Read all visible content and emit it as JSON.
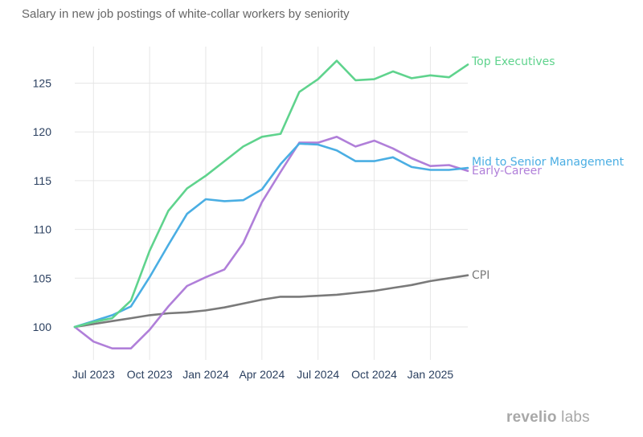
{
  "chart_data": {
    "type": "line",
    "title": "Salary in new job postings of white-collar workers by seniority",
    "xlabel": "",
    "ylabel": "",
    "x": [
      "2023-06",
      "2023-07",
      "2023-08",
      "2023-09",
      "2023-10",
      "2023-11",
      "2023-12",
      "2024-01",
      "2024-02",
      "2024-03",
      "2024-04",
      "2024-05",
      "2024-06",
      "2024-07",
      "2024-08",
      "2024-09",
      "2024-10",
      "2024-11",
      "2024-12",
      "2025-01",
      "2025-02",
      "2025-03"
    ],
    "xticks": [
      "Jul 2023",
      "Oct 2023",
      "Jan 2024",
      "Apr 2024",
      "Jul 2024",
      "Oct 2024",
      "Jan 2025"
    ],
    "xtick_dates": [
      "2023-07",
      "2023-10",
      "2024-01",
      "2024-04",
      "2024-07",
      "2024-10",
      "2025-01"
    ],
    "yticks": [
      100,
      105,
      110,
      115,
      120,
      125
    ],
    "ylim": [
      97.5,
      128.5
    ],
    "grid": true,
    "series": [
      {
        "name": "Top Executives",
        "color": "#5fd38d",
        "values": [
          100,
          100.5,
          100.9,
          102.7,
          107.8,
          111.9,
          114.2,
          115.5,
          117.0,
          118.5,
          119.5,
          119.8,
          124.1,
          125.4,
          127.3,
          125.3,
          125.4,
          126.2,
          125.5,
          125.8,
          125.6,
          126.9
        ]
      },
      {
        "name": "Mid to Senior Management",
        "color": "#4aaee3",
        "values": [
          100,
          100.6,
          101.2,
          102.1,
          105.1,
          108.4,
          111.6,
          113.1,
          112.9,
          113.0,
          114.1,
          116.7,
          118.8,
          118.7,
          118.1,
          117.0,
          117.0,
          117.4,
          116.4,
          116.1,
          116.1,
          116.3
        ]
      },
      {
        "name": "Early-Career",
        "color": "#b07fd9",
        "values": [
          100,
          98.5,
          97.8,
          97.8,
          99.7,
          102.1,
          104.2,
          105.1,
          105.9,
          108.6,
          112.8,
          115.9,
          118.9,
          118.9,
          119.5,
          118.5,
          119.1,
          118.3,
          117.3,
          116.5,
          116.6,
          116.0
        ]
      },
      {
        "name": "CPI",
        "color": "#7a7a7a",
        "values": [
          100,
          100.3,
          100.6,
          100.9,
          101.2,
          101.4,
          101.5,
          101.7,
          102.0,
          102.4,
          102.8,
          103.1,
          103.1,
          103.2,
          103.3,
          103.5,
          103.7,
          104.0,
          104.3,
          104.7,
          105.0,
          105.3
        ]
      }
    ]
  },
  "brand": {
    "part1": "revelio",
    "part2": "labs"
  }
}
